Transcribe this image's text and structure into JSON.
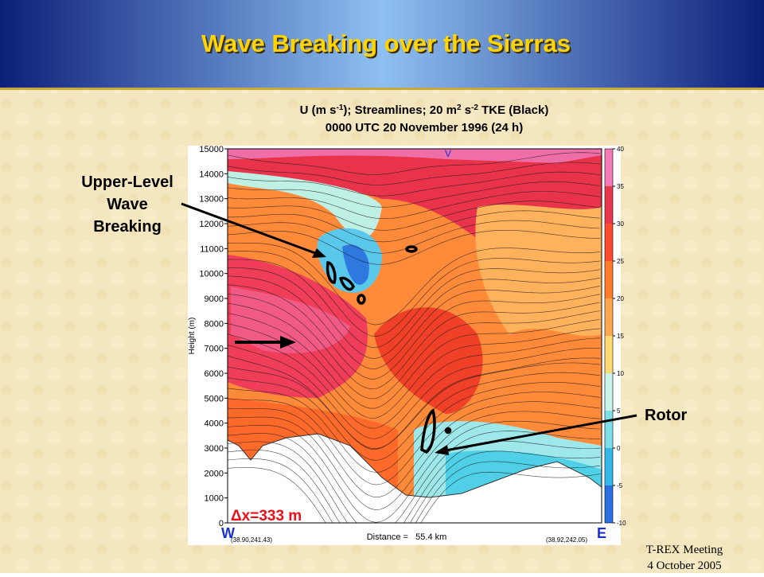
{
  "header": {
    "title": "Wave Breaking over the Sierras"
  },
  "figure": {
    "title": [
      "U (m s",
      "-1",
      "); Streamlines; 20 m",
      "2",
      " s",
      "-2",
      " TKE (Black)"
    ],
    "subtitle": "0000 UTC 20 November 1996 (24 h)",
    "ylabel": "Height (m)",
    "ylim": [
      0,
      15000
    ],
    "yticks": [
      0,
      1000,
      2000,
      3000,
      4000,
      5000,
      6000,
      7000,
      8000,
      9000,
      10000,
      11000,
      12000,
      13000,
      14000,
      15000
    ],
    "colorbar_lim": [
      -10,
      40
    ],
    "colorbar_ticks": [
      40,
      35,
      30,
      25,
      20,
      15,
      10,
      5,
      0,
      -5,
      -10
    ],
    "xlabel": "Distance =   55.4 km",
    "left_coord": "(38.90,241.43)",
    "right_coord": "(38.92,242.05)",
    "left_end": "W",
    "right_end": "E",
    "top_label": "V"
  },
  "annotations": {
    "wave_breaking": [
      "Upper-Level",
      "Wave",
      "Breaking"
    ],
    "rotor": "Rotor",
    "resolution": "Δx=333 m"
  },
  "footer": [
    "T-REX Meeting",
    "4 October 2005"
  ]
}
